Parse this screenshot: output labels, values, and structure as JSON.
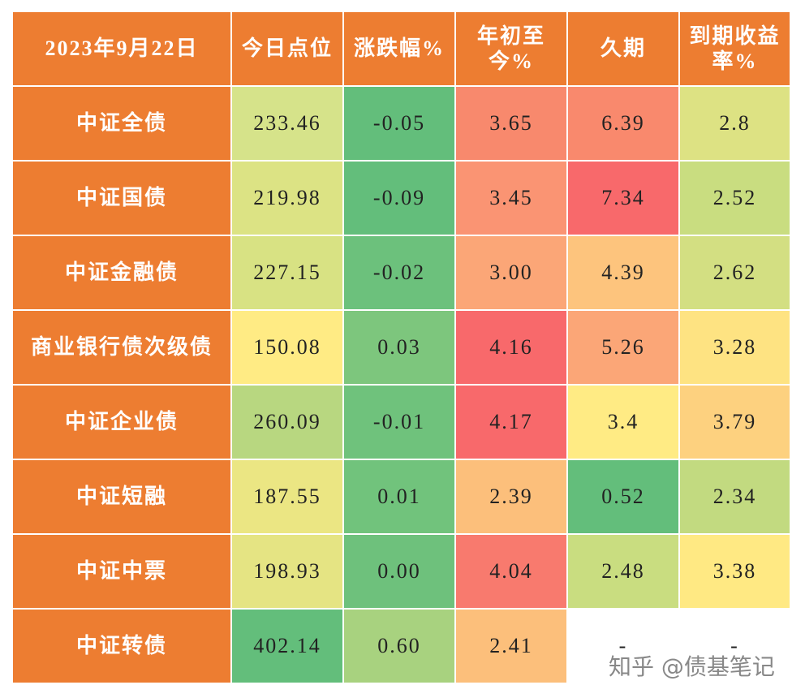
{
  "table": {
    "header": [
      "2023年9月22日",
      "今日点位",
      "涨跌幅%",
      "年初至今%",
      "久期",
      "到期收益率%"
    ],
    "rows": [
      [
        "中证全债",
        "233.46",
        "-0.05",
        "3.65",
        "6.39",
        "2.8"
      ],
      [
        "中证国债",
        "219.98",
        "-0.09",
        "3.45",
        "7.34",
        "2.52"
      ],
      [
        "中证金融债",
        "227.15",
        "-0.02",
        "3.00",
        "4.39",
        "2.62"
      ],
      [
        "商业银行债次级债",
        "150.08",
        "0.03",
        "4.16",
        "5.26",
        "3.28"
      ],
      [
        "中证企业债",
        "260.09",
        "-0.01",
        "4.17",
        "3.4",
        "3.79"
      ],
      [
        "中证短融",
        "187.55",
        "0.01",
        "2.39",
        "0.52",
        "2.34"
      ],
      [
        "中证中票",
        "198.93",
        "0.00",
        "4.04",
        "2.48",
        "3.38"
      ],
      [
        "中证转债",
        "402.14",
        "0.60",
        "2.41",
        "-",
        "-"
      ]
    ],
    "header_color": "#ed7d31",
    "cell_colors": [
      [
        "#ed7d31",
        "#d6e38a",
        "#63be7b",
        "#f8896d",
        "#f9896d",
        "#dde283"
      ],
      [
        "#ed7d31",
        "#dce384",
        "#63be7b",
        "#fa9473",
        "#f8696b",
        "#c9dd80"
      ],
      [
        "#ed7d31",
        "#d8e283",
        "#6cc17c",
        "#fba677",
        "#fdc47d",
        "#d3df82"
      ],
      [
        "#ed7d31",
        "#ffeb84",
        "#7dc67d",
        "#f8696b",
        "#fba677",
        "#fee382"
      ],
      [
        "#ed7d31",
        "#b8d780",
        "#6fc27c",
        "#f8696b",
        "#ffeb84",
        "#fdd17f"
      ],
      [
        "#ed7d31",
        "#ebe683",
        "#71c37c",
        "#fcbf7b",
        "#63be7b",
        "#c2da80"
      ],
      [
        "#ed7d31",
        "#e5e483",
        "#6ec17c",
        "#f87a6e",
        "#c9dd80",
        "#ffe983"
      ],
      [
        "#ed7d31",
        "#63be7b",
        "#a8d27f",
        "#fcbf7b",
        "#ffffff",
        "#ffffff"
      ]
    ]
  },
  "watermark": "知乎 @债基笔记"
}
